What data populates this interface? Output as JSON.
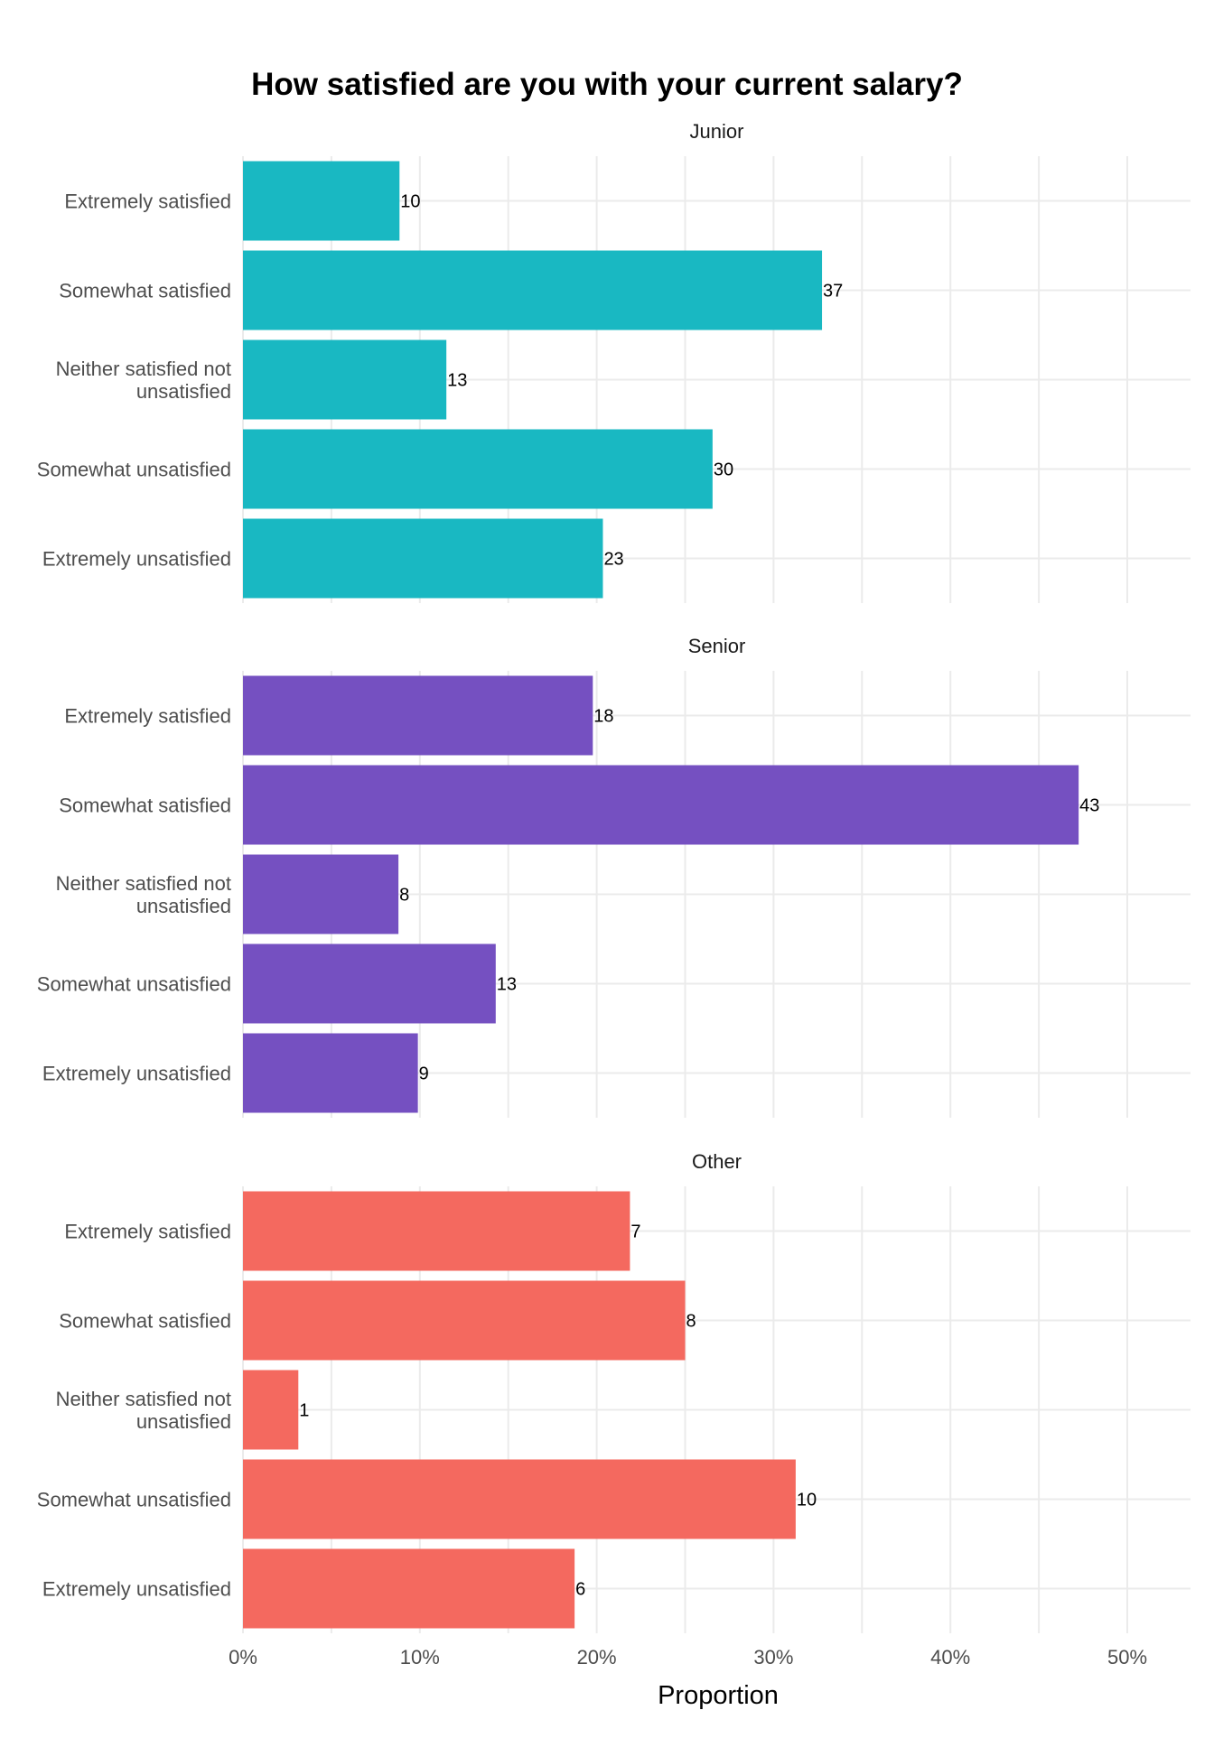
{
  "chart_data": {
    "type": "bar",
    "orientation": "horizontal",
    "title": "How satisfied are you with your current salary?",
    "xlabel": "Proportion",
    "ylabel": "",
    "xlim": [
      0,
      0.54
    ],
    "x_ticks": [
      0,
      0.1,
      0.2,
      0.3,
      0.4,
      0.5
    ],
    "x_tick_labels": [
      "0%",
      "10%",
      "20%",
      "30%",
      "40%",
      "50%"
    ],
    "grid": true,
    "categories": [
      "Extremely satisfied",
      "Somewhat satisfied",
      "Neither satisfied not unsatisfied",
      "Somewhat unsatisfied",
      "Extremely unsatisfied"
    ],
    "category_lines": [
      [
        "Extremely satisfied"
      ],
      [
        "Somewhat satisfied"
      ],
      [
        "Neither satisfied not",
        "unsatisfied"
      ],
      [
        "Somewhat unsatisfied"
      ],
      [
        "Extremely unsatisfied"
      ]
    ],
    "facets": [
      {
        "name": "Junior",
        "color": "#19B8C2",
        "values": [
          0.0885,
          0.3274,
          0.115,
          0.2655,
          0.2035
        ],
        "counts": [
          "10",
          "37",
          "13",
          "30",
          "23"
        ]
      },
      {
        "name": "Senior",
        "color": "#7550C1",
        "values": [
          0.1978,
          0.4725,
          0.0879,
          0.1429,
          0.0989
        ],
        "counts": [
          "18",
          "43",
          "8",
          "13",
          "9"
        ]
      },
      {
        "name": "Other",
        "color": "#F4695F",
        "values": [
          0.2188,
          0.25,
          0.0313,
          0.3125,
          0.1875
        ],
        "counts": [
          "7",
          "8",
          "1",
          "10",
          "6"
        ]
      }
    ]
  }
}
